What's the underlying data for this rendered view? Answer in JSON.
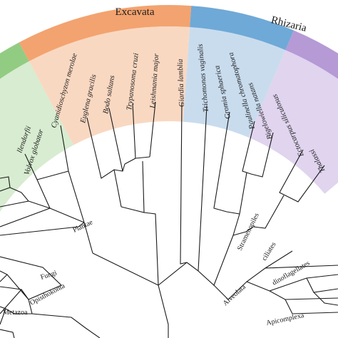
{
  "colors": {
    "excavata": "#f3a36f",
    "excavata_bg": "#f9d8c2",
    "rhizaria": "#6fa9d7",
    "rhizaria_bg": "#c9dcee",
    "plantae": "#92cc82",
    "plantae_bg": "#d7ecd0",
    "sar_right": "#b59ad6",
    "sar_right_bg": "#e0d4ef",
    "branch": "#1a1a1a"
  },
  "bands": {
    "excavata": "Excavata",
    "rhizaria": "Rhizaria"
  },
  "species": {
    "ostreococcus_part": "llendorfii",
    "volvox": "Volvox globator",
    "cyanidioschyzon": "Cyanidioschyzon merolae",
    "euglena": "Euglena gracilis",
    "bodo": "Bodo saltans",
    "trypanosoma": "Trypanosoma cruzi",
    "leishmania": "Leishmania major",
    "giardia": "Giardia lamblia",
    "trichomonas": "Trichomonas vaginalis",
    "gromia": "Gromia sphaerica",
    "paulinella": "Paulinella chromatophora",
    "bigelowiella": "Bigelowiella natans",
    "ectocarpus": "Ectocarpus siliculosus",
    "thalassiosira_part": "Thalassi"
  },
  "groups": {
    "plantae": "Plantae",
    "fungi": "Fungi",
    "opisthokonta": "Opisthokonta",
    "metazoa": "Metazoa",
    "stramenopiles": "Stramenopiles",
    "ciliates": "ciliates",
    "dinoflagellates": "dinoflagellates",
    "alveolata": "Alveolata",
    "apicomplexa": "Apicomplexa"
  }
}
